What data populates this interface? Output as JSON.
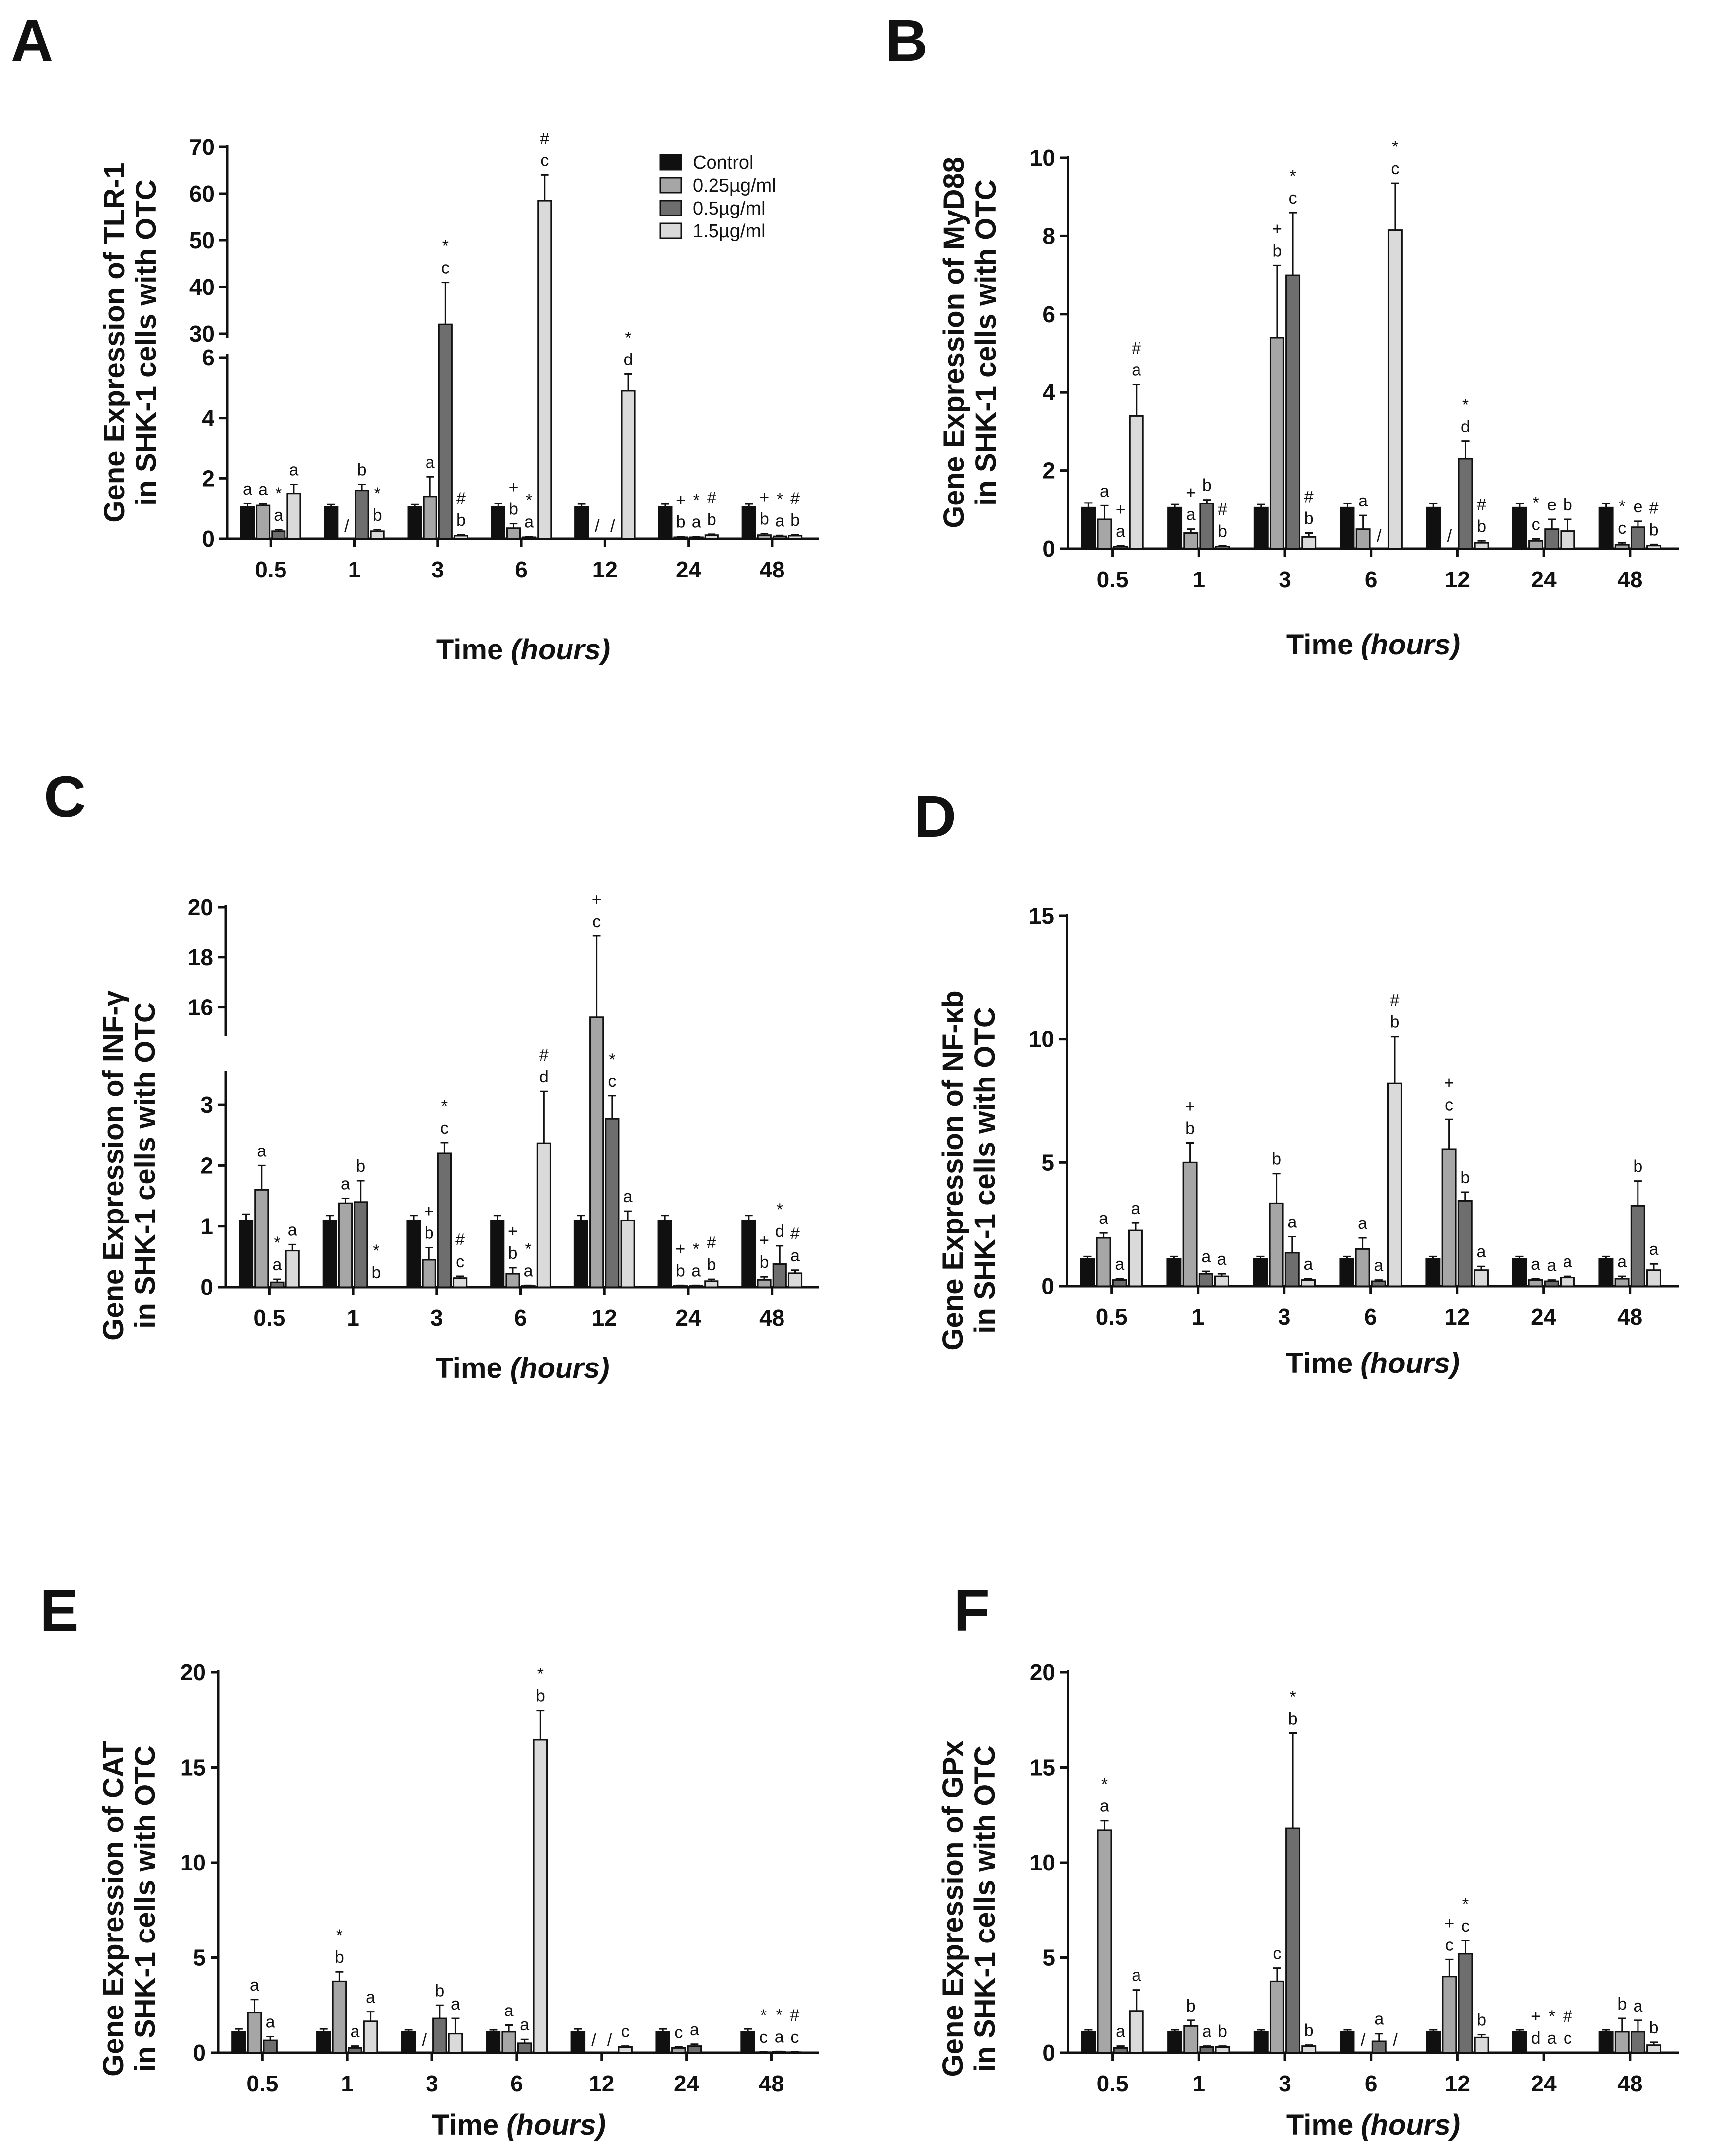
{
  "figure": {
    "groups": [
      "Control",
      "0.25µg/ml",
      "0.5µg/ml",
      "1.5µg/ml"
    ],
    "group_colors": [
      "#101010",
      "#a6a6a6",
      "#6e6e6e",
      "#dadada"
    ],
    "time_categories": [
      "0.5",
      "1",
      "3",
      "6",
      "12",
      "24",
      "48"
    ],
    "xlabel_main": "Time",
    "xlabel_unit": "(hours)"
  },
  "chart_data": [
    {
      "panel": "A",
      "type": "bar",
      "ylabel_line1": "Gene Expression of TLR-1",
      "ylabel_line2": "in SHK-1 cells with OTC",
      "axis_break": true,
      "lower_ticks": [
        "0",
        "2",
        "4",
        "6"
      ],
      "lower_range": [
        0,
        6
      ],
      "upper_ticks": [
        "30",
        "40",
        "50",
        "60",
        "70"
      ],
      "upper_range": [
        30,
        70
      ],
      "legend": [
        "Control",
        "0.25µg/ml",
        "0.5µg/ml",
        "1.5µg/ml"
      ],
      "categories": [
        "0.5",
        "1",
        "3",
        "6",
        "12",
        "24",
        "48"
      ],
      "series": [
        {
          "name": "Control",
          "values": [
            1.05,
            1.05,
            1.05,
            1.05,
            1.05,
            1.05,
            1.05
          ],
          "errors": [
            0.12,
            0.08,
            0.08,
            0.12,
            0.1,
            0.1,
            0.1
          ]
        },
        {
          "name": "0.25µg/ml",
          "values": [
            1.1,
            null,
            1.4,
            0.35,
            null,
            0.05,
            0.12
          ],
          "errors": [
            0.05,
            null,
            0.65,
            0.15,
            null,
            0.02,
            0.05
          ]
        },
        {
          "name": "0.5µg/ml",
          "values": [
            0.25,
            1.6,
            32,
            0.05,
            null,
            0.05,
            0.08
          ],
          "errors": [
            0.05,
            0.2,
            9,
            0.02,
            null,
            0.02,
            0.03
          ]
        },
        {
          "name": "1.5µg/ml",
          "values": [
            1.5,
            0.25,
            0.1,
            58.5,
            4.9,
            0.12,
            0.1
          ],
          "errors": [
            0.3,
            0.05,
            0.03,
            5.5,
            0.55,
            0.03,
            0.03
          ]
        }
      ],
      "annotations": [
        [
          "a",
          "a",
          "*|a",
          "a"
        ],
        [
          "",
          "/",
          "b",
          "*|b"
        ],
        [
          "",
          "a",
          "*|c",
          "#|b"
        ],
        [
          "",
          "+|b",
          "*|a",
          "#|c"
        ],
        [
          "",
          "/",
          "/",
          "*|d"
        ],
        [
          "",
          "+|b",
          "*|a",
          "#|b"
        ],
        [
          "",
          "+|b",
          "*|a",
          "#|b"
        ]
      ]
    },
    {
      "panel": "B",
      "type": "bar",
      "ylabel_line1": "Gene Expression of MyD88",
      "ylabel_line2": "in SHK-1 cells with OTC",
      "ylim": [
        0,
        10
      ],
      "ticks": [
        "0",
        "2",
        "4",
        "6",
        "8",
        "10"
      ],
      "categories": [
        "0.5",
        "1",
        "3",
        "6",
        "12",
        "24",
        "48"
      ],
      "series": [
        {
          "name": "Control",
          "values": [
            1.05,
            1.05,
            1.05,
            1.05,
            1.05,
            1.05,
            1.05
          ],
          "errors": [
            0.12,
            0.08,
            0.08,
            0.1,
            0.1,
            0.1,
            0.1
          ]
        },
        {
          "name": "0.25µg/ml",
          "values": [
            0.75,
            0.4,
            5.4,
            0.5,
            null,
            0.2,
            0.1
          ],
          "errors": [
            0.35,
            0.1,
            1.85,
            0.35,
            null,
            0.05,
            0.05
          ]
        },
        {
          "name": "0.5µg/ml",
          "values": [
            0.05,
            1.15,
            7.0,
            null,
            2.3,
            0.5,
            0.55
          ],
          "errors": [
            0.02,
            0.1,
            1.6,
            null,
            0.45,
            0.25,
            0.15
          ]
        },
        {
          "name": "1.5µg/ml",
          "values": [
            3.4,
            0.05,
            0.3,
            8.15,
            0.15,
            0.45,
            0.08
          ],
          "errors": [
            0.8,
            0.02,
            0.1,
            1.2,
            0.05,
            0.3,
            0.03
          ]
        }
      ],
      "annotations": [
        [
          "",
          "a",
          "+|a",
          "#|a"
        ],
        [
          "",
          "+|a",
          "b",
          "#|b"
        ],
        [
          "",
          "+|b",
          "*|c",
          "#|b"
        ],
        [
          "",
          "a",
          "/",
          "*|c"
        ],
        [
          "",
          "/",
          "*|d",
          "#|b"
        ],
        [
          "",
          "*|c",
          "e",
          "b"
        ],
        [
          "",
          "*|c",
          "e",
          "#|b"
        ]
      ]
    },
    {
      "panel": "C",
      "type": "bar",
      "ylabel_line1": "Gene Expression of INF-γ",
      "ylabel_line2": "in SHK-1 cells with OTC",
      "axis_break": true,
      "lower_ticks": [
        "0",
        "1",
        "2",
        "3"
      ],
      "lower_range": [
        0,
        3.5
      ],
      "upper_ticks": [
        "16",
        "18",
        "20"
      ],
      "upper_range": [
        15,
        20
      ],
      "categories": [
        "0.5",
        "1",
        "3",
        "6",
        "12",
        "24",
        "48"
      ],
      "series": [
        {
          "name": "Control",
          "values": [
            1.1,
            1.1,
            1.1,
            1.1,
            1.1,
            1.1,
            1.1
          ],
          "errors": [
            0.1,
            0.08,
            0.08,
            0.08,
            0.08,
            0.08,
            0.08
          ]
        },
        {
          "name": "0.25µg/ml",
          "values": [
            1.6,
            1.38,
            0.45,
            0.22,
            15.6,
            0.02,
            0.12
          ],
          "errors": [
            0.4,
            0.08,
            0.2,
            0.1,
            3.25,
            0.01,
            0.05
          ]
        },
        {
          "name": "0.5µg/ml",
          "values": [
            0.08,
            1.4,
            2.2,
            0.02,
            2.77,
            0.02,
            0.38
          ],
          "errors": [
            0.05,
            0.35,
            0.18,
            0.01,
            0.38,
            0.01,
            0.3
          ]
        },
        {
          "name": "1.5µg/ml",
          "values": [
            0.6,
            null,
            0.15,
            2.37,
            1.1,
            0.1,
            0.23
          ],
          "errors": [
            0.1,
            null,
            0.03,
            0.85,
            0.15,
            0.03,
            0.05
          ]
        }
      ],
      "annotations": [
        [
          "",
          "a",
          "*|a",
          "a"
        ],
        [
          "",
          "a",
          "b",
          "*|b"
        ],
        [
          "",
          "+|b",
          "*|c",
          "#|c"
        ],
        [
          "",
          "+|b",
          "*|a",
          "#|d"
        ],
        [
          "",
          "+|c",
          "*|c",
          "a"
        ],
        [
          "",
          "+|b",
          "*|a",
          "#|b"
        ],
        [
          "",
          "+|b",
          "*|d",
          "#|a"
        ]
      ]
    },
    {
      "panel": "D",
      "type": "bar",
      "ylabel_line1": "Gene Expression of NF-κb",
      "ylabel_line2": "in SHK-1 cells with OTC",
      "ylim": [
        0,
        15
      ],
      "ticks": [
        "0",
        "5",
        "10",
        "15"
      ],
      "categories": [
        "0.5",
        "1",
        "3",
        "6",
        "12",
        "24",
        "48"
      ],
      "series": [
        {
          "name": "Control",
          "values": [
            1.1,
            1.1,
            1.1,
            1.1,
            1.1,
            1.1,
            1.1
          ],
          "errors": [
            0.1,
            0.1,
            0.1,
            0.1,
            0.1,
            0.1,
            0.1
          ]
        },
        {
          "name": "0.25µg/ml",
          "values": [
            1.95,
            5.0,
            3.35,
            1.5,
            5.55,
            0.25,
            0.3
          ],
          "errors": [
            0.2,
            0.8,
            1.2,
            0.45,
            1.2,
            0.05,
            0.1
          ]
        },
        {
          "name": "0.5µg/ml",
          "values": [
            0.25,
            0.5,
            1.35,
            0.2,
            3.45,
            0.2,
            3.25
          ],
          "errors": [
            0.05,
            0.1,
            0.65,
            0.05,
            0.35,
            0.05,
            1.0
          ]
        },
        {
          "name": "1.5µg/ml",
          "values": [
            2.25,
            0.4,
            0.25,
            8.2,
            0.65,
            0.35,
            0.65
          ],
          "errors": [
            0.3,
            0.1,
            0.05,
            1.9,
            0.15,
            0.05,
            0.25
          ]
        }
      ],
      "annotations": [
        [
          "",
          "a",
          "a",
          "a"
        ],
        [
          "",
          "+|b",
          "a",
          "a"
        ],
        [
          "",
          "b",
          "a",
          "a"
        ],
        [
          "",
          "a",
          "a",
          "#|b"
        ],
        [
          "",
          "+|c",
          "b",
          "a"
        ],
        [
          "",
          "a",
          "a",
          "a"
        ],
        [
          "",
          "a",
          "b",
          "a"
        ]
      ]
    },
    {
      "panel": "E",
      "type": "bar",
      "ylabel_line1": "Gene Expression of CAT",
      "ylabel_line2": "in SHK-1 cells with OTC",
      "ylim": [
        0,
        20
      ],
      "ticks": [
        "0",
        "5",
        "10",
        "15",
        "20"
      ],
      "categories": [
        "0.5",
        "1",
        "3",
        "6",
        "12",
        "24",
        "48"
      ],
      "series": [
        {
          "name": "Control",
          "values": [
            1.1,
            1.1,
            1.1,
            1.1,
            1.1,
            1.1,
            1.1
          ],
          "errors": [
            0.15,
            0.15,
            0.1,
            0.1,
            0.15,
            0.15,
            0.15
          ]
        },
        {
          "name": "0.25µg/ml",
          "values": [
            2.1,
            3.75,
            null,
            1.1,
            null,
            0.25,
            0.03
          ],
          "errors": [
            0.7,
            0.5,
            null,
            0.35,
            null,
            0.05,
            0.02
          ]
        },
        {
          "name": "0.5µg/ml",
          "values": [
            0.65,
            0.25,
            1.8,
            0.5,
            null,
            0.35,
            0.05
          ],
          "errors": [
            0.2,
            0.1,
            0.7,
            0.2,
            null,
            0.1,
            0.02
          ]
        },
        {
          "name": "1.5µg/ml",
          "values": [
            null,
            1.65,
            1.0,
            16.45,
            0.3,
            null,
            0.03
          ],
          "errors": [
            null,
            0.5,
            0.8,
            1.55,
            0.05,
            null,
            0.02
          ]
        }
      ],
      "annotations": [
        [
          "",
          "a",
          "a",
          ""
        ],
        [
          "",
          "*|b",
          "a",
          "a"
        ],
        [
          "",
          "/",
          "b",
          "a"
        ],
        [
          "",
          "a",
          "a",
          "*|b"
        ],
        [
          "",
          "/",
          "/",
          "c"
        ],
        [
          "",
          "c",
          "a",
          ""
        ],
        [
          "",
          "*|c",
          "*|a",
          "#|c"
        ]
      ]
    },
    {
      "panel": "F",
      "type": "bar",
      "ylabel_line1": "Gene Expression of GPx",
      "ylabel_line2": "in SHK-1 cells with OTC",
      "ylim": [
        0,
        20
      ],
      "ticks": [
        "0",
        "5",
        "10",
        "15",
        "20"
      ],
      "categories": [
        "0.5",
        "1",
        "3",
        "6",
        "12",
        "24",
        "48"
      ],
      "series": [
        {
          "name": "Control",
          "values": [
            1.1,
            1.1,
            1.1,
            1.1,
            1.1,
            1.1,
            1.1
          ],
          "errors": [
            0.1,
            0.1,
            0.1,
            0.1,
            0.1,
            0.1,
            0.1
          ]
        },
        {
          "name": "0.25µg/ml",
          "values": [
            11.7,
            1.4,
            3.75,
            null,
            4.0,
            null,
            1.1
          ],
          "errors": [
            0.5,
            0.3,
            0.7,
            null,
            0.9,
            null,
            0.7
          ]
        },
        {
          "name": "0.5µg/ml",
          "values": [
            0.25,
            0.3,
            11.8,
            0.6,
            5.2,
            null,
            1.1
          ],
          "errors": [
            0.1,
            0.05,
            5.0,
            0.4,
            0.7,
            null,
            0.6
          ]
        },
        {
          "name": "1.5µg/ml",
          "values": [
            2.2,
            0.3,
            0.35,
            null,
            0.8,
            null,
            0.4
          ],
          "errors": [
            1.1,
            0.05,
            0.05,
            null,
            0.15,
            null,
            0.15
          ]
        }
      ],
      "annotations": [
        [
          "",
          "*|a",
          "a",
          "a"
        ],
        [
          "",
          "b",
          "a",
          "b"
        ],
        [
          "",
          "c",
          "*|b",
          "b"
        ],
        [
          "",
          "/",
          "a",
          "/"
        ],
        [
          "",
          "+|c",
          "*|c",
          "b"
        ],
        [
          "",
          "+|d",
          "*|a",
          "#|c"
        ],
        [
          "",
          "b",
          "a",
          "b"
        ]
      ]
    }
  ]
}
